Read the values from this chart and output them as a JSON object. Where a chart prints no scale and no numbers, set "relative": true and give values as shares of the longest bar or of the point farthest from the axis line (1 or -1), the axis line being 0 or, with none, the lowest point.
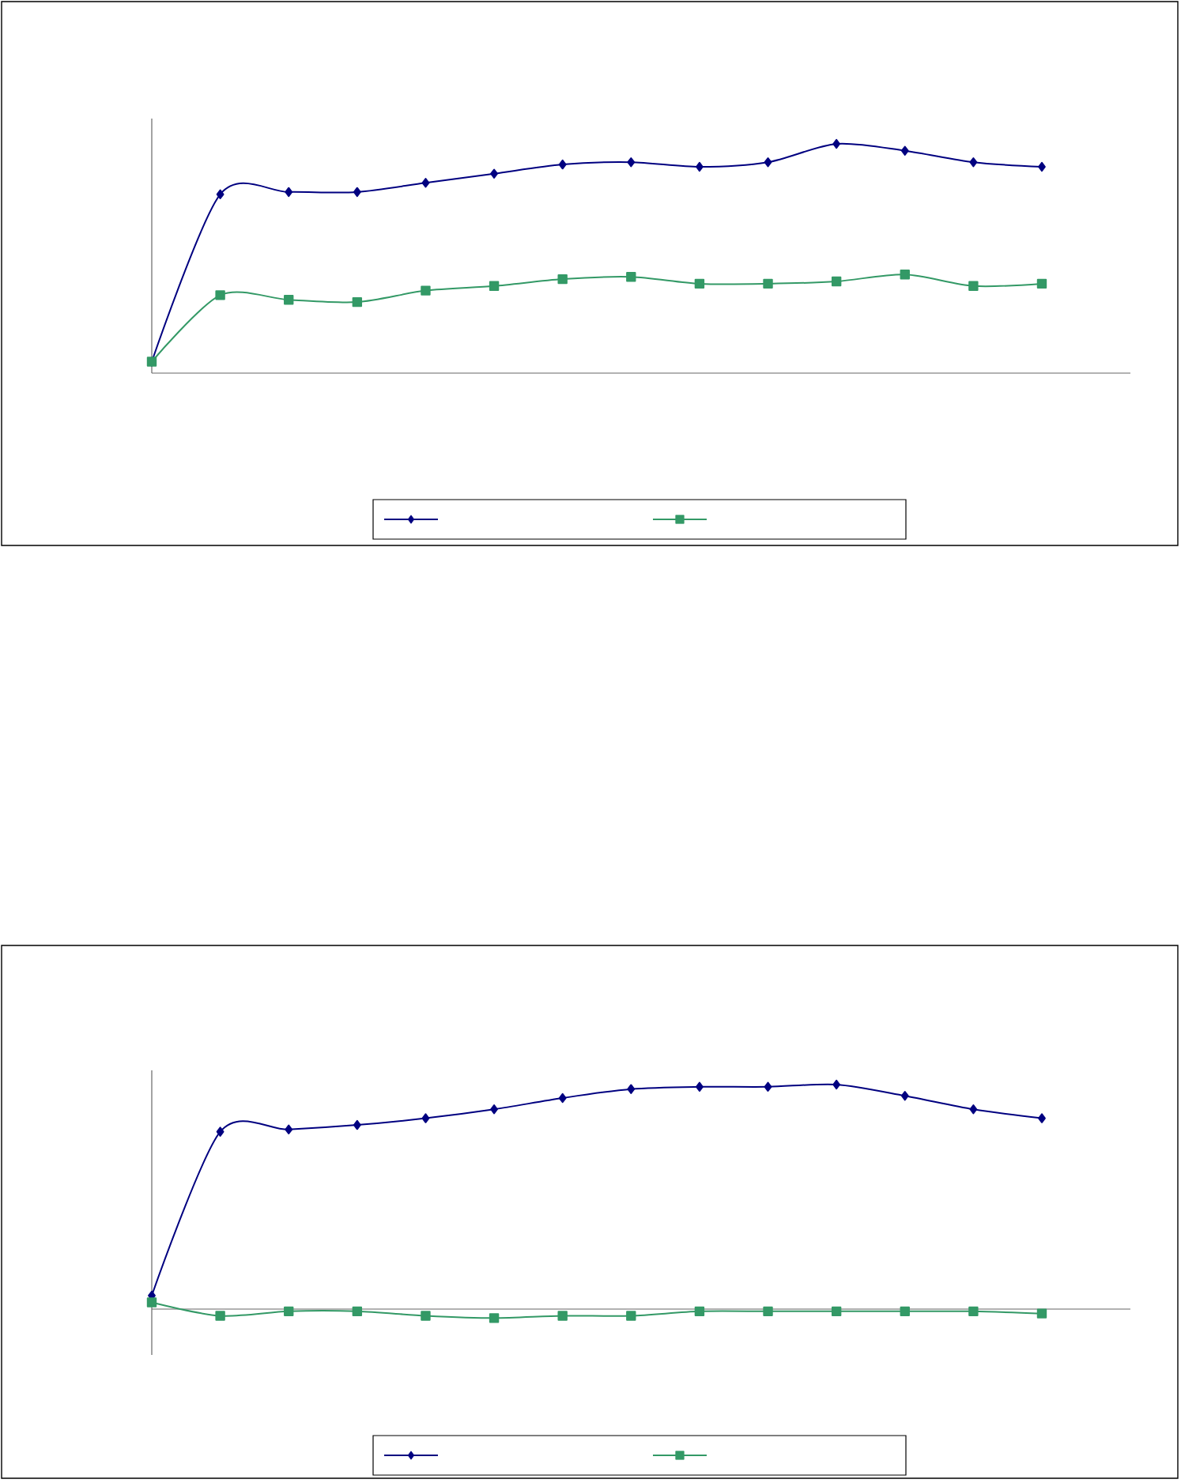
{
  "chart_data": [
    {
      "type": "line",
      "relative": true,
      "categories": [
        null,
        null,
        null,
        null,
        null,
        null,
        null,
        null,
        null,
        null,
        null,
        null,
        null,
        null
      ],
      "series": [
        {
          "color": "#000080",
          "marker": "diamond",
          "values": [
            0.05,
            0.78,
            0.79,
            0.79,
            0.83,
            0.87,
            0.91,
            0.92,
            0.9,
            0.92,
            1.0,
            0.97,
            0.92,
            0.9
          ]
        },
        {
          "color": "#339966",
          "marker": "square",
          "values": [
            0.05,
            0.34,
            0.32,
            0.31,
            0.36,
            0.38,
            0.41,
            0.42,
            0.39,
            0.39,
            0.4,
            0.43,
            0.38,
            0.39
          ]
        }
      ]
    },
    {
      "type": "line",
      "relative": true,
      "categories": [
        null,
        null,
        null,
        null,
        null,
        null,
        null,
        null,
        null,
        null,
        null,
        null,
        null,
        null
      ],
      "series": [
        {
          "color": "#000080",
          "marker": "diamond",
          "values": [
            0.06,
            0.79,
            0.8,
            0.82,
            0.85,
            0.89,
            0.94,
            0.98,
            0.99,
            0.99,
            1.0,
            0.95,
            0.89,
            0.85
          ]
        },
        {
          "color": "#339966",
          "marker": "square",
          "values": [
            0.03,
            -0.03,
            -0.01,
            -0.01,
            -0.03,
            -0.04,
            -0.03,
            -0.03,
            -0.01,
            -0.01,
            -0.01,
            -0.01,
            -0.01,
            -0.02
          ]
        }
      ]
    }
  ]
}
